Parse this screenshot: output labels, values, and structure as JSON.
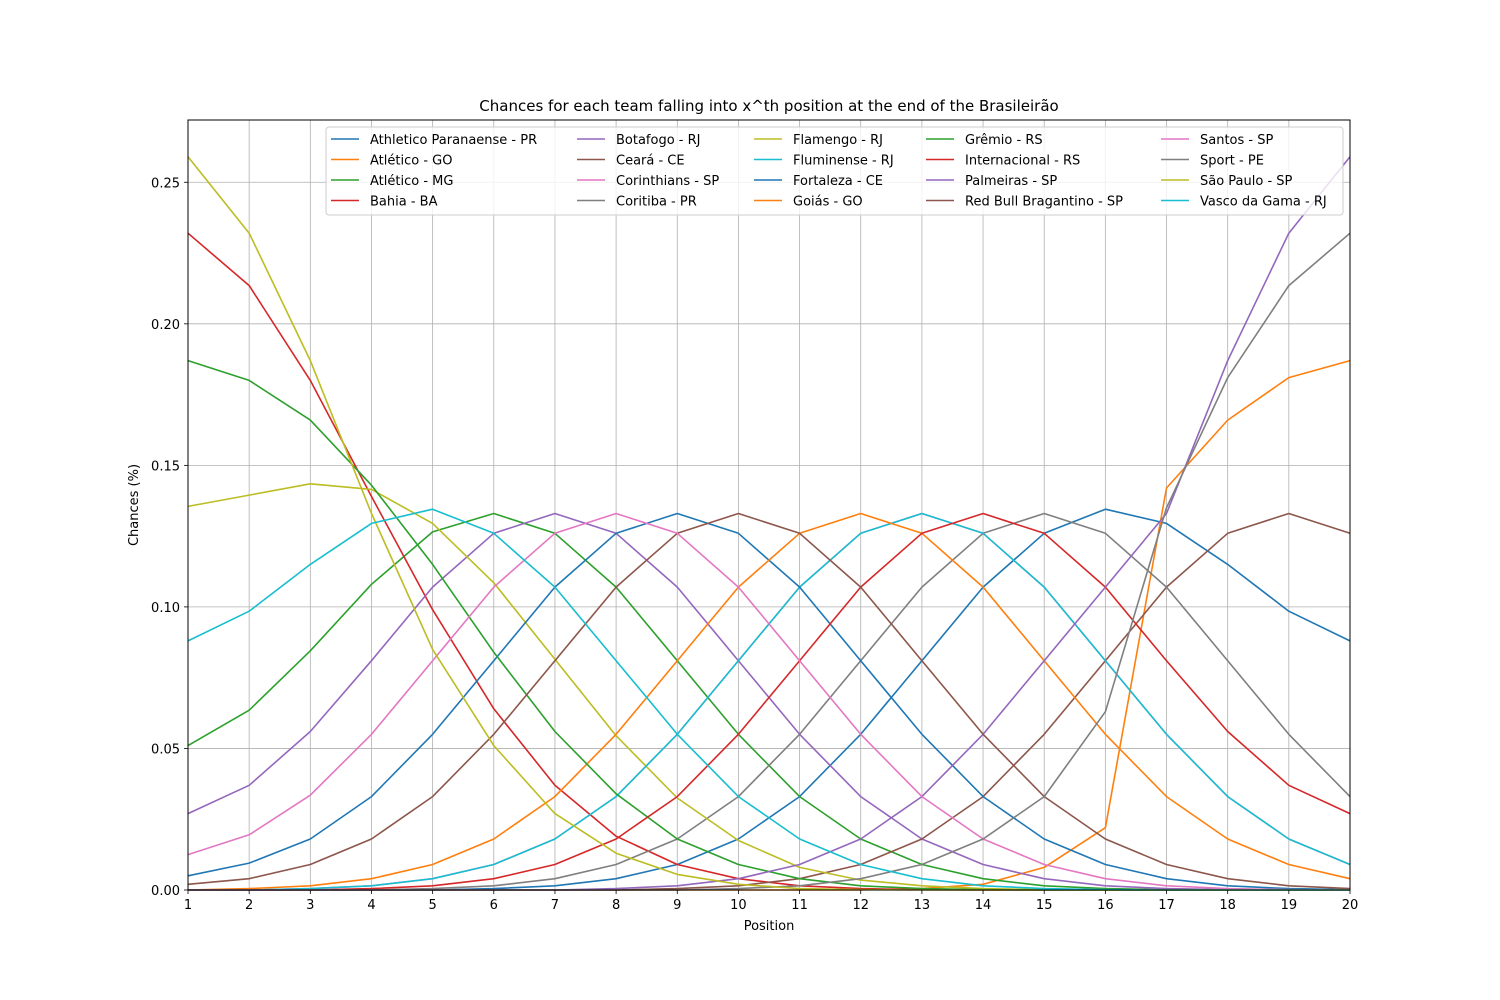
{
  "chart_data": {
    "type": "line",
    "title": "Chances for each team falling into x^th position at the end of the Brasileirão",
    "xlabel": "Position",
    "ylabel": "Chances (%)",
    "xlim": [
      1,
      20
    ],
    "ylim": [
      0,
      0.272
    ],
    "grid": true,
    "legend_placement": "top-right",
    "legend_columns": 5,
    "x": [
      1,
      2,
      3,
      4,
      5,
      6,
      7,
      8,
      9,
      10,
      11,
      12,
      13,
      14,
      15,
      16,
      17,
      18,
      19,
      20
    ],
    "x_ticks": [
      "1",
      "2",
      "3",
      "4",
      "5",
      "6",
      "7",
      "8",
      "9",
      "10",
      "11",
      "12",
      "13",
      "14",
      "15",
      "16",
      "17",
      "18",
      "19",
      "20"
    ],
    "y_ticks": [
      {
        "value": 0.0,
        "label": "0.00"
      },
      {
        "value": 0.05,
        "label": "0.05"
      },
      {
        "value": 0.1,
        "label": "0.10"
      },
      {
        "value": 0.15,
        "label": "0.15"
      },
      {
        "value": 0.2,
        "label": "0.20"
      },
      {
        "value": 0.25,
        "label": "0.25"
      }
    ],
    "series": [
      {
        "name": "Athletico Paranaense - PR",
        "color": "#1f77b4",
        "values": [
          0.0,
          0.0,
          0.0,
          0.0,
          0.0,
          0.0005,
          0.0015,
          0.004,
          0.009,
          0.018,
          0.033,
          0.055,
          0.081,
          0.107,
          0.126,
          0.1345,
          0.1295,
          0.115,
          0.0985,
          0.088
        ]
      },
      {
        "name": "Atlético - GO",
        "color": "#ff7f0e",
        "values": [
          0.0,
          0.0,
          0.0,
          0.0,
          0.0,
          0.0,
          0.0,
          0.0,
          0.0,
          0.0,
          0.0,
          0.0,
          0.0005,
          0.002,
          0.008,
          0.022,
          0.142,
          0.166,
          0.181,
          0.187
        ]
      },
      {
        "name": "Atlético - MG",
        "color": "#2ca02c",
        "values": [
          0.051,
          0.0635,
          0.0845,
          0.108,
          0.1265,
          0.133,
          0.126,
          0.107,
          0.081,
          0.055,
          0.033,
          0.018,
          0.009,
          0.004,
          0.0015,
          0.0005,
          0.0001,
          0.0,
          0.0,
          0.0
        ]
      },
      {
        "name": "Bahia - BA",
        "color": "#d62728",
        "values": [
          0.232,
          0.2135,
          0.18,
          0.139,
          0.099,
          0.064,
          0.037,
          0.019,
          0.009,
          0.004,
          0.0015,
          0.0005,
          0.0001,
          0.0,
          0.0,
          0.0,
          0.0,
          0.0,
          0.0,
          0.0
        ]
      },
      {
        "name": "Botafogo - RJ",
        "color": "#9467bd",
        "values": [
          0.027,
          0.037,
          0.056,
          0.081,
          0.107,
          0.126,
          0.133,
          0.126,
          0.107,
          0.081,
          0.055,
          0.033,
          0.018,
          0.009,
          0.004,
          0.0015,
          0.0005,
          0.0001,
          0.0,
          0.0
        ]
      },
      {
        "name": "Ceará - CE",
        "color": "#8c564b",
        "values": [
          0.0,
          0.0,
          0.0,
          0.0,
          0.0,
          0.0,
          0.0,
          0.0,
          0.0005,
          0.0015,
          0.004,
          0.009,
          0.018,
          0.033,
          0.055,
          0.081,
          0.107,
          0.126,
          0.133,
          0.126
        ]
      },
      {
        "name": "Corinthians - SP",
        "color": "#e377c2",
        "values": [
          0.0,
          0.0,
          0.0005,
          0.0015,
          0.004,
          0.009,
          0.018,
          0.033,
          0.055,
          0.081,
          0.107,
          0.126,
          0.133,
          0.126,
          0.107,
          0.081,
          0.055,
          0.033,
          0.018,
          0.009
        ]
      },
      {
        "name": "Coritiba - PR",
        "color": "#7f7f7f",
        "values": [
          0.0,
          0.0,
          0.0,
          0.0,
          0.0005,
          0.0015,
          0.004,
          0.009,
          0.018,
          0.033,
          0.055,
          0.081,
          0.107,
          0.126,
          0.133,
          0.126,
          0.107,
          0.081,
          0.055,
          0.033
        ]
      },
      {
        "name": "Flamengo - RJ",
        "color": "#bcbd22",
        "values": [
          0.1355,
          0.1395,
          0.1435,
          0.1415,
          0.1295,
          0.1085,
          0.0815,
          0.0545,
          0.0325,
          0.0175,
          0.008,
          0.0035,
          0.0015,
          0.0005,
          0.0001,
          0.0,
          0.0,
          0.0,
          0.0,
          0.0
        ]
      },
      {
        "name": "Fluminense - RJ",
        "color": "#17becf",
        "values": [
          0.0,
          0.0,
          0.0005,
          0.0015,
          0.004,
          0.009,
          0.018,
          0.033,
          0.055,
          0.081,
          0.107,
          0.126,
          0.133,
          0.126,
          0.107,
          0.081,
          0.055,
          0.033,
          0.018,
          0.009
        ]
      },
      {
        "name": "Fortaleza - CE",
        "color": "#1f77b4",
        "values": [
          0.005,
          0.0095,
          0.018,
          0.033,
          0.055,
          0.081,
          0.107,
          0.126,
          0.133,
          0.126,
          0.107,
          0.081,
          0.055,
          0.033,
          0.018,
          0.009,
          0.004,
          0.0015,
          0.0005,
          0.0001
        ]
      },
      {
        "name": "Goiás - GO",
        "color": "#ff7f0e",
        "values": [
          0.0,
          0.0005,
          0.0015,
          0.004,
          0.009,
          0.018,
          0.033,
          0.055,
          0.081,
          0.107,
          0.126,
          0.133,
          0.126,
          0.107,
          0.081,
          0.055,
          0.033,
          0.018,
          0.009,
          0.004
        ]
      },
      {
        "name": "Grêmio - RS",
        "color": "#2ca02c",
        "values": [
          0.187,
          0.18,
          0.166,
          0.143,
          0.115,
          0.084,
          0.056,
          0.034,
          0.018,
          0.009,
          0.004,
          0.0015,
          0.0005,
          0.0001,
          0.0,
          0.0,
          0.0,
          0.0,
          0.0,
          0.0
        ]
      },
      {
        "name": "Internacional - RS",
        "color": "#d62728",
        "values": [
          0.0,
          0.0,
          0.0,
          0.0005,
          0.0015,
          0.004,
          0.009,
          0.018,
          0.033,
          0.055,
          0.081,
          0.107,
          0.126,
          0.133,
          0.126,
          0.107,
          0.081,
          0.056,
          0.037,
          0.027
        ]
      },
      {
        "name": "Palmeiras - SP",
        "color": "#9467bd",
        "values": [
          0.0,
          0.0,
          0.0,
          0.0,
          0.0,
          0.0,
          0.0,
          0.0005,
          0.0015,
          0.004,
          0.009,
          0.018,
          0.033,
          0.055,
          0.081,
          0.107,
          0.133,
          0.187,
          0.232,
          0.259
        ]
      },
      {
        "name": "Red Bull Bragantino - SP",
        "color": "#8c564b",
        "values": [
          0.002,
          0.004,
          0.009,
          0.018,
          0.033,
          0.055,
          0.081,
          0.107,
          0.126,
          0.133,
          0.126,
          0.107,
          0.081,
          0.055,
          0.033,
          0.018,
          0.009,
          0.004,
          0.0015,
          0.0005
        ]
      },
      {
        "name": "Santos - SP",
        "color": "#e377c2",
        "values": [
          0.0125,
          0.0195,
          0.0335,
          0.055,
          0.081,
          0.107,
          0.126,
          0.133,
          0.126,
          0.107,
          0.081,
          0.055,
          0.033,
          0.018,
          0.009,
          0.004,
          0.0015,
          0.0005,
          0.0001,
          0.0
        ]
      },
      {
        "name": "Sport - PE",
        "color": "#7f7f7f",
        "values": [
          0.0,
          0.0,
          0.0,
          0.0,
          0.0,
          0.0,
          0.0,
          0.0,
          0.0,
          0.0005,
          0.0015,
          0.004,
          0.009,
          0.018,
          0.033,
          0.063,
          0.135,
          0.181,
          0.2135,
          0.232
        ]
      },
      {
        "name": "São Paulo - SP",
        "color": "#bcbd22",
        "values": [
          0.259,
          0.232,
          0.187,
          0.133,
          0.085,
          0.051,
          0.027,
          0.013,
          0.0055,
          0.002,
          0.0005,
          0.0001,
          0.0,
          0.0,
          0.0,
          0.0,
          0.0,
          0.0,
          0.0,
          0.0
        ]
      },
      {
        "name": "Vasco da Gama - RJ",
        "color": "#17becf",
        "values": [
          0.088,
          0.0985,
          0.115,
          0.1295,
          0.1345,
          0.126,
          0.107,
          0.081,
          0.055,
          0.033,
          0.018,
          0.009,
          0.004,
          0.0015,
          0.0005,
          0.0001,
          0.0,
          0.0,
          0.0,
          0.0
        ]
      }
    ]
  }
}
